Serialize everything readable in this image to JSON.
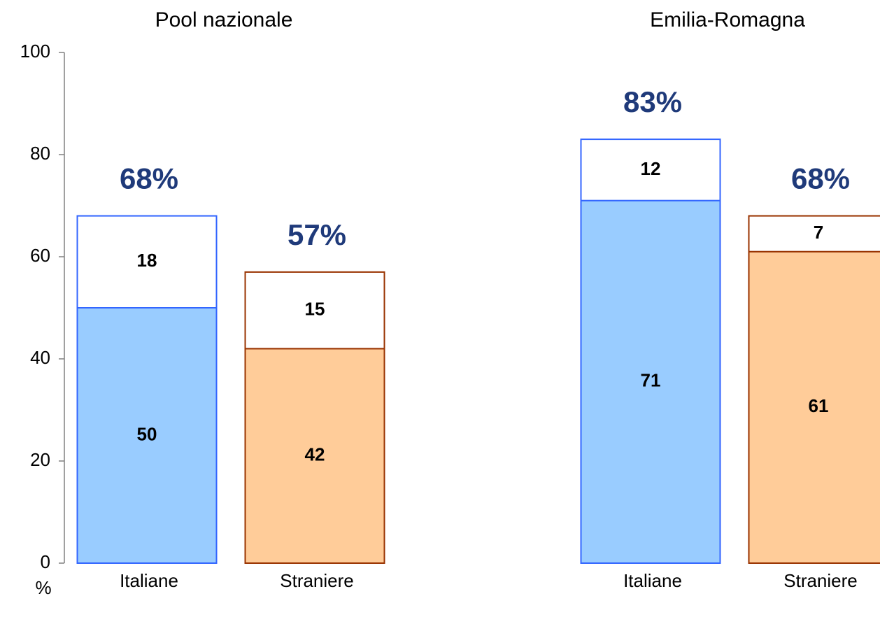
{
  "chart_data": {
    "type": "bar",
    "stacked": true,
    "ylabel": "%",
    "groups": [
      "Pool nazionale",
      "Emilia-Romagna"
    ],
    "categories": [
      "Italiane",
      "Straniere",
      "Italiane",
      "Straniere"
    ],
    "bar_colors": [
      "#99ccff",
      "#ffcc99",
      "#99ccff",
      "#ffcc99"
    ],
    "edge_colors": [
      "#3366ff",
      "#993300",
      "#3366ff",
      "#993300"
    ],
    "series": [
      {
        "values": [
          50,
          42,
          71,
          61
        ]
      },
      {
        "values": [
          18,
          15,
          12,
          7
        ],
        "color": "#ffffff"
      }
    ],
    "totals": [
      68,
      57,
      83,
      68
    ],
    "total_labels": [
      "68%",
      "57%",
      "83%",
      "68%"
    ],
    "total_color": "#1f3a7a",
    "ylim": [
      0,
      100
    ],
    "yticks": [
      0,
      20,
      40,
      60,
      80,
      100
    ]
  }
}
